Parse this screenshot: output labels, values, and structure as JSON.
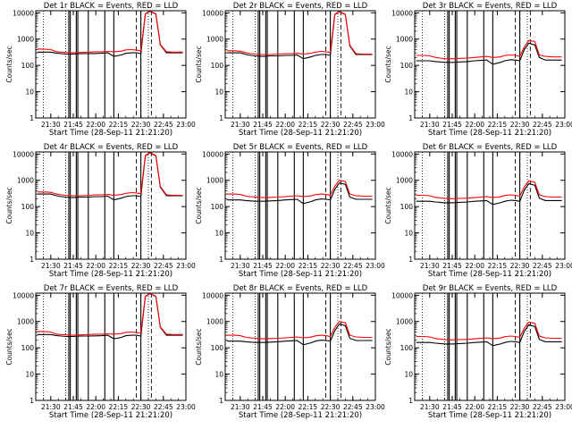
{
  "figure": {
    "background": "#ffffff",
    "axis_color": "#000000",
    "events_color": "#000000",
    "lld_color": "#ff0000"
  },
  "shared": {
    "xlabel": "Start Time (28-Sep-11 21:21:20)",
    "ylabel": "Counts/sec",
    "x_ticks": [
      "21:30",
      "21:45",
      "22:00",
      "22:15",
      "22:30",
      "22:45",
      "23:00"
    ],
    "y_ticks": [
      "1",
      "10",
      "100",
      "1000",
      "10000"
    ],
    "xlim": [
      "21:20",
      "23:00"
    ],
    "ylim": [
      1,
      12000
    ],
    "y_scale": "log",
    "grid": false
  },
  "chart_data": [
    {
      "type": "line",
      "title": "Det 1r BLACK = Events, RED = LLD",
      "x": [
        "21:21",
        "21:26",
        "21:30",
        "21:34",
        "21:37",
        "21:40",
        "21:45",
        "21:50",
        "21:55",
        "22:00",
        "22:04",
        "22:08",
        "22:12",
        "22:17",
        "22:20",
        "22:24",
        "22:27",
        "22:30",
        "22:33",
        "22:36",
        "22:40",
        "22:43",
        "22:47",
        "22:52",
        "22:58"
      ],
      "series": [
        {
          "name": "Events",
          "color": "#000000",
          "values": [
            320,
            320,
            320,
            290,
            280,
            270,
            270,
            280,
            280,
            285,
            290,
            300,
            220,
            250,
            290,
            300,
            300,
            280,
            9000,
            11500,
            9000,
            600,
            300,
            300,
            300
          ]
        },
        {
          "name": "LLD",
          "color": "#ff0000",
          "values": [
            420,
            410,
            400,
            330,
            320,
            310,
            300,
            310,
            320,
            330,
            330,
            340,
            330,
            350,
            390,
            400,
            380,
            360,
            9200,
            11800,
            9100,
            620,
            330,
            320,
            320
          ]
        }
      ]
    },
    {
      "type": "line",
      "title": "Det 2r BLACK = Events, RED = LLD",
      "x": [
        "21:21",
        "21:26",
        "21:30",
        "21:34",
        "21:37",
        "21:40",
        "21:45",
        "21:50",
        "21:55",
        "22:00",
        "22:04",
        "22:08",
        "22:12",
        "22:17",
        "22:20",
        "22:24",
        "22:27",
        "22:30",
        "22:33",
        "22:36",
        "22:40",
        "22:43",
        "22:47",
        "22:52",
        "22:58"
      ],
      "series": [
        {
          "name": "Events",
          "color": "#000000",
          "values": [
            300,
            300,
            300,
            260,
            240,
            230,
            220,
            230,
            230,
            240,
            240,
            250,
            180,
            210,
            240,
            260,
            260,
            240,
            8500,
            11000,
            8500,
            550,
            260,
            260,
            260
          ]
        },
        {
          "name": "LLD",
          "color": "#ff0000",
          "values": [
            360,
            360,
            350,
            300,
            280,
            270,
            260,
            260,
            270,
            280,
            280,
            290,
            270,
            290,
            320,
            340,
            330,
            310,
            8800,
            11300,
            8800,
            580,
            280,
            270,
            270
          ]
        }
      ]
    },
    {
      "type": "line",
      "title": "Det 3r BLACK = Events, RED = LLD",
      "x": [
        "21:21",
        "21:26",
        "21:30",
        "21:34",
        "21:37",
        "21:40",
        "21:45",
        "21:50",
        "21:55",
        "22:00",
        "22:04",
        "22:08",
        "22:12",
        "22:17",
        "22:20",
        "22:24",
        "22:27",
        "22:30",
        "22:33",
        "22:36",
        "22:40",
        "22:43",
        "22:47",
        "22:52",
        "22:58"
      ],
      "series": [
        {
          "name": "Events",
          "color": "#000000",
          "values": [
            150,
            150,
            150,
            140,
            135,
            130,
            130,
            135,
            140,
            150,
            155,
            160,
            110,
            130,
            150,
            165,
            160,
            150,
            400,
            700,
            600,
            200,
            160,
            160,
            160
          ]
        },
        {
          "name": "LLD",
          "color": "#ff0000",
          "values": [
            240,
            240,
            230,
            200,
            190,
            180,
            180,
            185,
            190,
            200,
            210,
            220,
            200,
            210,
            240,
            250,
            240,
            220,
            500,
            900,
            800,
            250,
            220,
            210,
            210
          ]
        }
      ]
    },
    {
      "type": "line",
      "title": "Det 4r BLACK = Events, RED = LLD",
      "x": [
        "21:21",
        "21:26",
        "21:30",
        "21:34",
        "21:37",
        "21:40",
        "21:45",
        "21:50",
        "21:55",
        "22:00",
        "22:04",
        "22:08",
        "22:12",
        "22:17",
        "22:20",
        "22:24",
        "22:27",
        "22:30",
        "22:33",
        "22:36",
        "22:40",
        "22:43",
        "22:47",
        "22:52",
        "22:58"
      ],
      "series": [
        {
          "name": "Events",
          "color": "#000000",
          "values": [
            300,
            300,
            300,
            260,
            240,
            230,
            220,
            230,
            230,
            240,
            240,
            250,
            180,
            210,
            240,
            260,
            260,
            240,
            8500,
            11000,
            8500,
            550,
            260,
            260,
            260
          ]
        },
        {
          "name": "LLD",
          "color": "#ff0000",
          "values": [
            360,
            360,
            350,
            300,
            280,
            270,
            260,
            260,
            270,
            280,
            280,
            290,
            270,
            290,
            320,
            340,
            330,
            310,
            8800,
            11300,
            8800,
            580,
            280,
            270,
            270
          ]
        }
      ]
    },
    {
      "type": "line",
      "title": "Det 5r BLACK = Events, RED = LLD",
      "x": [
        "21:21",
        "21:26",
        "21:30",
        "21:34",
        "21:37",
        "21:40",
        "21:45",
        "21:50",
        "21:55",
        "22:00",
        "22:04",
        "22:08",
        "22:12",
        "22:17",
        "22:20",
        "22:24",
        "22:27",
        "22:30",
        "22:33",
        "22:36",
        "22:40",
        "22:43",
        "22:47",
        "22:52",
        "22:58"
      ],
      "series": [
        {
          "name": "Events",
          "color": "#000000",
          "values": [
            180,
            180,
            180,
            170,
            165,
            160,
            160,
            165,
            170,
            180,
            185,
            190,
            130,
            155,
            180,
            195,
            190,
            180,
            450,
            800,
            700,
            230,
            190,
            190,
            190
          ]
        },
        {
          "name": "LLD",
          "color": "#ff0000",
          "values": [
            300,
            300,
            290,
            250,
            240,
            230,
            220,
            225,
            230,
            240,
            250,
            260,
            240,
            255,
            285,
            300,
            290,
            270,
            600,
            1000,
            900,
            300,
            260,
            250,
            250
          ]
        }
      ]
    },
    {
      "type": "line",
      "title": "Det 6r BLACK = Events, RED = LLD",
      "x": [
        "21:21",
        "21:26",
        "21:30",
        "21:34",
        "21:37",
        "21:40",
        "21:45",
        "21:50",
        "21:55",
        "22:00",
        "22:04",
        "22:08",
        "22:12",
        "22:17",
        "22:20",
        "22:24",
        "22:27",
        "22:30",
        "22:33",
        "22:36",
        "22:40",
        "22:43",
        "22:47",
        "22:52",
        "22:58"
      ],
      "series": [
        {
          "name": "Events",
          "color": "#000000",
          "values": [
            160,
            160,
            160,
            150,
            145,
            140,
            140,
            145,
            150,
            160,
            165,
            170,
            120,
            140,
            160,
            175,
            170,
            160,
            420,
            750,
            650,
            210,
            170,
            170,
            170
          ]
        },
        {
          "name": "LLD",
          "color": "#ff0000",
          "values": [
            270,
            270,
            260,
            225,
            215,
            205,
            200,
            205,
            210,
            220,
            230,
            240,
            220,
            235,
            265,
            280,
            270,
            250,
            560,
            950,
            850,
            280,
            240,
            230,
            230
          ]
        }
      ]
    },
    {
      "type": "line",
      "title": "Det 7r BLACK = Events, RED = LLD",
      "x": [
        "21:21",
        "21:26",
        "21:30",
        "21:34",
        "21:37",
        "21:40",
        "21:45",
        "21:50",
        "21:55",
        "22:00",
        "22:04",
        "22:08",
        "22:12",
        "22:17",
        "22:20",
        "22:24",
        "22:27",
        "22:30",
        "22:33",
        "22:36",
        "22:40",
        "22:43",
        "22:47",
        "22:52",
        "22:58"
      ],
      "series": [
        {
          "name": "Events",
          "color": "#000000",
          "values": [
            320,
            320,
            320,
            290,
            280,
            270,
            270,
            280,
            280,
            285,
            290,
            300,
            220,
            250,
            290,
            300,
            300,
            280,
            9000,
            11500,
            9000,
            600,
            300,
            300,
            300
          ]
        },
        {
          "name": "LLD",
          "color": "#ff0000",
          "values": [
            420,
            410,
            400,
            330,
            320,
            310,
            300,
            310,
            320,
            330,
            330,
            340,
            330,
            350,
            390,
            400,
            380,
            360,
            9200,
            11800,
            9100,
            620,
            330,
            320,
            320
          ]
        }
      ]
    },
    {
      "type": "line",
      "title": "Det 8r BLACK = Events, RED = LLD",
      "x": [
        "21:21",
        "21:26",
        "21:30",
        "21:34",
        "21:37",
        "21:40",
        "21:45",
        "21:50",
        "21:55",
        "22:00",
        "22:04",
        "22:08",
        "22:12",
        "22:17",
        "22:20",
        "22:24",
        "22:27",
        "22:30",
        "22:33",
        "22:36",
        "22:40",
        "22:43",
        "22:47",
        "22:52",
        "22:58"
      ],
      "series": [
        {
          "name": "Events",
          "color": "#000000",
          "values": [
            180,
            180,
            180,
            170,
            165,
            160,
            160,
            165,
            170,
            180,
            185,
            190,
            130,
            155,
            180,
            195,
            190,
            180,
            450,
            800,
            700,
            230,
            190,
            190,
            190
          ]
        },
        {
          "name": "LLD",
          "color": "#ff0000",
          "values": [
            300,
            300,
            290,
            250,
            240,
            230,
            220,
            225,
            230,
            240,
            250,
            260,
            240,
            255,
            285,
            300,
            290,
            270,
            600,
            1000,
            900,
            300,
            260,
            250,
            250
          ]
        }
      ]
    },
    {
      "type": "line",
      "title": "Det 9r BLACK = Events, RED = LLD",
      "x": [
        "21:21",
        "21:26",
        "21:30",
        "21:34",
        "21:37",
        "21:40",
        "21:45",
        "21:50",
        "21:55",
        "22:00",
        "22:04",
        "22:08",
        "22:12",
        "22:17",
        "22:20",
        "22:24",
        "22:27",
        "22:30",
        "22:33",
        "22:36",
        "22:40",
        "22:43",
        "22:47",
        "22:52",
        "22:58"
      ],
      "series": [
        {
          "name": "Events",
          "color": "#000000",
          "values": [
            160,
            160,
            160,
            150,
            145,
            140,
            140,
            145,
            150,
            160,
            165,
            170,
            120,
            140,
            160,
            175,
            170,
            160,
            420,
            750,
            650,
            210,
            170,
            170,
            170
          ]
        },
        {
          "name": "LLD",
          "color": "#ff0000",
          "values": [
            270,
            270,
            260,
            225,
            215,
            205,
            200,
            205,
            210,
            220,
            230,
            240,
            220,
            235,
            265,
            280,
            270,
            250,
            560,
            950,
            850,
            280,
            240,
            230,
            230
          ]
        }
      ]
    }
  ],
  "markers": {
    "dotted": [
      "21:25",
      "21:40",
      "22:35"
    ],
    "dashed": [
      "22:27",
      "22:37"
    ],
    "solid": [
      "21:42",
      "21:43",
      "21:47",
      "21:48",
      "21:55",
      "22:06",
      "22:12",
      "22:30"
    ]
  }
}
